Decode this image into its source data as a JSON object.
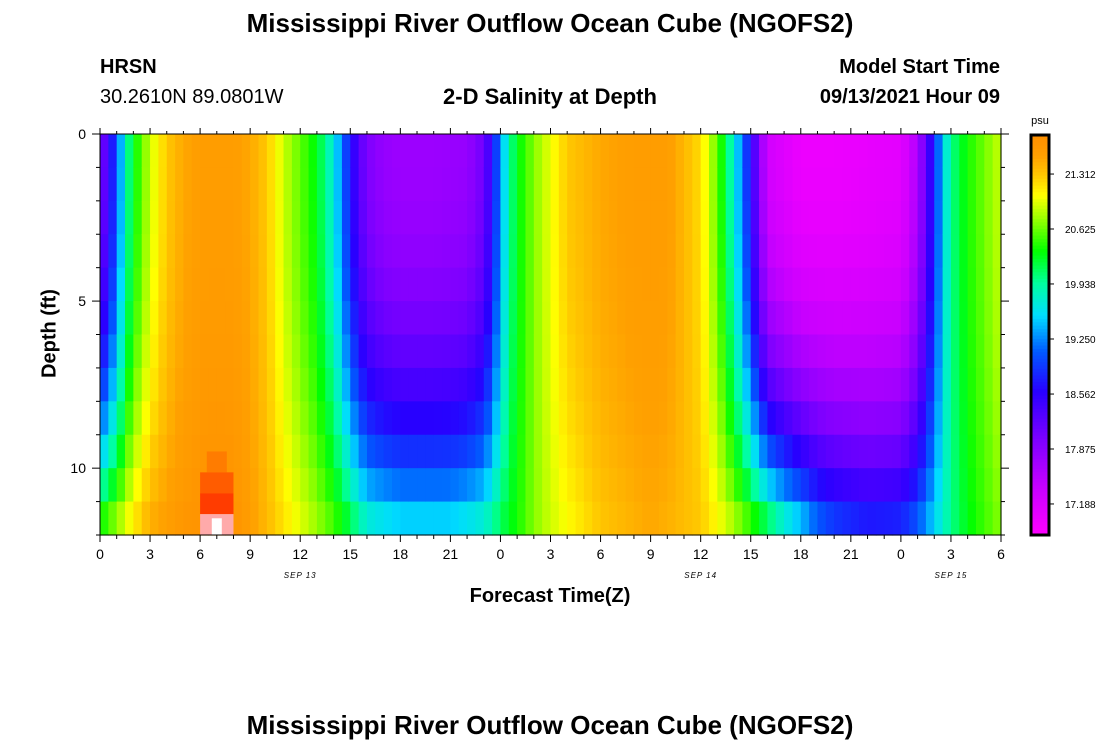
{
  "page": {
    "title": "Mississippi River Outflow Ocean Cube (NGOFS2)",
    "footer_title": "Mississippi River Outflow Ocean Cube (NGOFS2)"
  },
  "header": {
    "station": "HRSN",
    "coords": "30.2610N  89.0801W",
    "subtitle": "2-D Salinity at Depth",
    "start_label": "Model Start Time",
    "start_value": "09/13/2021 Hour 09"
  },
  "chart_data": {
    "type": "heatmap",
    "title": "2-D Salinity at Depth",
    "xlabel": "Forecast Time(Z)",
    "ylabel": "Depth (ft)",
    "units": "psu",
    "x_start_hour": 0,
    "x_end_hour": 54,
    "ylim": [
      0,
      12
    ],
    "x_tick_hours": [
      0,
      3,
      6,
      9,
      12,
      15,
      18,
      21,
      24,
      27,
      30,
      33,
      36,
      39,
      42,
      45,
      48,
      51,
      54
    ],
    "x_tick_labels": [
      "0",
      "3",
      "6",
      "9",
      "12",
      "15",
      "18",
      "21",
      "0",
      "3",
      "6",
      "9",
      "12",
      "15",
      "18",
      "21",
      "0",
      "3",
      "6"
    ],
    "date_labels": [
      {
        "hour": 12,
        "label": "SEP 13"
      },
      {
        "hour": 36,
        "label": "SEP 14"
      },
      {
        "hour": 51,
        "label": "SEP 15"
      }
    ],
    "y_ticks": [
      0,
      5,
      10
    ],
    "colorbar": {
      "min": 16.8,
      "max": 21.8,
      "ticks": [
        17.188,
        17.875,
        18.562,
        19.25,
        19.938,
        20.625,
        21.312
      ],
      "tick_labels": [
        "17.188",
        "17.875",
        "18.562",
        "19.250",
        "19.938",
        "20.625",
        "21.312"
      ]
    },
    "profile": {
      "surface_hours": [
        0,
        0.5,
        1,
        1.5,
        2,
        3,
        4,
        5,
        6,
        7,
        8,
        9,
        10,
        11,
        12,
        13,
        14,
        14.5,
        15,
        15.5,
        16,
        17,
        18,
        20,
        22,
        23,
        23.5,
        24,
        24.5,
        25,
        26,
        27,
        28,
        30,
        32,
        34,
        36,
        37,
        37.5,
        38,
        38.5,
        39,
        40,
        42,
        44,
        48,
        49,
        49.5,
        50,
        50.5,
        51,
        52,
        54
      ],
      "surface_values": [
        17.9,
        18.5,
        19.0,
        19.8,
        20.3,
        20.9,
        21.3,
        21.5,
        21.6,
        21.6,
        21.6,
        21.5,
        21.3,
        20.9,
        20.6,
        20.3,
        19.7,
        19.2,
        18.7,
        18.3,
        18.0,
        17.8,
        17.75,
        17.75,
        17.8,
        18.1,
        18.6,
        19.3,
        19.9,
        20.3,
        20.7,
        21.0,
        21.3,
        21.5,
        21.6,
        21.6,
        21.2,
        20.6,
        20.2,
        19.7,
        19.2,
        18.6,
        17.3,
        17.0,
        17.0,
        17.1,
        17.6,
        18.2,
        18.8,
        19.5,
        20.0,
        20.4,
        20.9
      ],
      "bottom_hours": [
        0,
        1,
        2,
        3,
        4,
        5,
        6,
        7,
        8,
        9,
        10,
        12,
        14,
        15,
        16,
        18,
        21,
        23,
        24,
        25,
        26,
        27,
        30,
        33,
        36,
        38,
        40,
        41,
        42,
        43,
        44,
        46,
        48,
        49,
        50,
        51,
        52,
        54
      ],
      "bottom_values": [
        20.6,
        20.9,
        21.2,
        21.5,
        21.6,
        21.7,
        21.75,
        21.8,
        21.75,
        21.6,
        21.4,
        21.0,
        20.6,
        20.3,
        19.9,
        19.7,
        19.7,
        19.9,
        20.2,
        20.4,
        20.7,
        20.9,
        21.3,
        21.5,
        21.3,
        20.9,
        20.4,
        20.0,
        19.7,
        19.3,
        19.1,
        18.9,
        18.95,
        19.2,
        19.6,
        20.0,
        20.3,
        20.7
      ],
      "hotspot": {
        "hour": 7,
        "depth_from": 9.5,
        "depth_to": 12,
        "values": [
          21.9,
          22.0,
          22.1,
          22.6
        ]
      }
    }
  }
}
